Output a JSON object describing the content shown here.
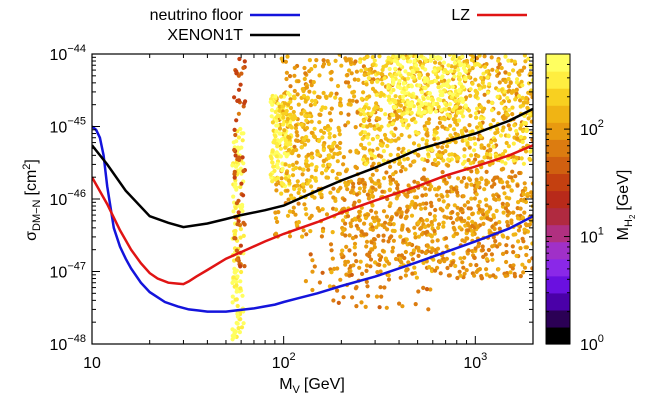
{
  "chart_data": {
    "type": "scatter",
    "title": "",
    "xlabel_main": "M",
    "xlabel_sub": "V",
    "xlabel_unit": "[GeV]",
    "ylabel_main": "σ",
    "ylabel_sub": "DM−N",
    "ylabel_unit_pre": "[cm",
    "ylabel_unit_sup": "2",
    "ylabel_unit_post": "]",
    "xscale": "log",
    "yscale": "log",
    "xlim": [
      10,
      2000
    ],
    "ylim": [
      1e-48,
      1e-44
    ],
    "grid": false,
    "legend_placement": "top (outside plot)",
    "x_ticks": [
      {
        "value": 10,
        "base": "10",
        "exp": ""
      },
      {
        "value": 100,
        "base": "10",
        "exp": "2"
      },
      {
        "value": 1000,
        "base": "10",
        "exp": "3"
      }
    ],
    "y_ticks": [
      {
        "value": 1e-48,
        "base": "10",
        "exp": "−48"
      },
      {
        "value": 1e-47,
        "base": "10",
        "exp": "−47"
      },
      {
        "value": 1e-46,
        "base": "10",
        "exp": "−46"
      },
      {
        "value": 1e-45,
        "base": "10",
        "exp": "−45"
      },
      {
        "value": 1e-44,
        "base": "10",
        "exp": "−44"
      }
    ],
    "series": [
      {
        "name": "neutrino floor",
        "color": "#1414dc",
        "x": [
          10,
          10.5,
          11,
          11.5,
          12,
          13,
          14,
          15,
          16,
          18,
          20,
          24,
          28,
          32,
          36,
          40,
          45,
          50,
          56,
          63,
          70,
          80,
          90,
          100,
          120,
          150,
          200,
          300,
          500,
          700,
          1000,
          1500,
          2000
        ],
        "y": [
          1e-45,
          9e-46,
          7e-46,
          4e-46,
          1.5e-46,
          4e-47,
          2.2e-47,
          1.5e-47,
          1.1e-47,
          7e-48,
          5.2e-48,
          3.8e-48,
          3.3e-48,
          3e-48,
          2.9e-48,
          2.8e-48,
          2.8e-48,
          2.8e-48,
          2.9e-48,
          3e-48,
          3.1e-48,
          3.3e-48,
          3.5e-48,
          3.8e-48,
          4.3e-48,
          5e-48,
          6.3e-48,
          8.5e-48,
          1.35e-47,
          1.85e-47,
          2.6e-47,
          3.9e-47,
          5.8e-47
        ]
      },
      {
        "name": "XENON1T",
        "color": "#000000",
        "x": [
          10,
          12,
          15,
          20,
          25,
          30,
          40,
          50,
          60,
          80,
          100,
          150,
          200,
          300,
          400,
          500,
          700,
          1000,
          1500,
          2000
        ],
        "y": [
          5.5e-46,
          3e-46,
          1.3e-46,
          5.8e-47,
          4.7e-47,
          4.1e-47,
          4.6e-47,
          5.3e-47,
          6e-47,
          7e-47,
          8.1e-47,
          1.3e-46,
          1.8e-46,
          2.7e-46,
          3.7e-46,
          4.8e-46,
          6.2e-46,
          8e-46,
          1.2e-45,
          1.75e-45
        ]
      },
      {
        "name": "LZ",
        "color": "#e01414",
        "x": [
          10,
          12,
          14,
          16,
          18,
          20,
          22,
          25,
          28,
          30,
          32,
          35,
          40,
          50,
          60,
          80,
          100,
          150,
          200,
          300,
          500,
          700,
          1000,
          1500,
          2000
        ],
        "y": [
          2e-46,
          8.5e-47,
          3.7e-47,
          2e-47,
          1.3e-47,
          9.5e-48,
          8e-48,
          7e-48,
          6.8e-48,
          6.7e-48,
          7.3e-48,
          8.5e-48,
          1.05e-47,
          1.5e-47,
          1.85e-47,
          2.6e-47,
          3.3e-47,
          4.8e-47,
          6.5e-47,
          9.5e-47,
          1.5e-46,
          2.1e-46,
          2.8e-46,
          4e-46,
          5.5e-46
        ]
      }
    ],
    "colorbar": {
      "label_main": "M",
      "label_sub": "H",
      "label_subsub": "2",
      "label_unit": "[GeV]",
      "scale": "log",
      "range": [
        1,
        500
      ],
      "ticks": [
        {
          "value": 1,
          "base": "10",
          "exp": "0"
        },
        {
          "value": 10,
          "base": "10",
          "exp": "1"
        },
        {
          "value": 100,
          "base": "10",
          "exp": "2"
        }
      ],
      "colors_bottom_to_top": [
        "#000000",
        "#2b0055",
        "#4a00a8",
        "#6a10e0",
        "#8a28e8",
        "#a030c8",
        "#b03080",
        "#b02a40",
        "#b82a1a",
        "#c44010",
        "#d06010",
        "#dc7c10",
        "#e89a10",
        "#f0b414",
        "#f8d020",
        "#ffee40",
        "#ffff60"
      ]
    },
    "scatter_note_points": "point cloud colored by M_H2",
    "scatter_clusters": [
      {
        "x": [
          90,
          2000
        ],
        "y": [
          3e-47,
          1e-44
        ],
        "m": 110,
        "count": 900
      },
      {
        "x": [
          200,
          2000
        ],
        "y": [
          8e-48,
          2e-46
        ],
        "m": 90,
        "count": 500
      },
      {
        "x": [
          250,
          2000
        ],
        "y": [
          3e-46,
          1e-44
        ],
        "m": 220,
        "count": 450
      },
      {
        "x": [
          350,
          900
        ],
        "y": [
          1.5e-45,
          1e-44
        ],
        "m": 400,
        "count": 220
      },
      {
        "x": [
          85,
          110
        ],
        "y": [
          1.5e-46,
          3e-45
        ],
        "m": 350,
        "count": 120
      },
      {
        "x": [
          54,
          62
        ],
        "y": [
          1e-48,
          1e-45
        ],
        "m": 400,
        "count": 130
      },
      {
        "x": [
          55,
          63
        ],
        "y": [
          1e-47,
          1e-44
        ],
        "m": 40,
        "count": 60
      },
      {
        "x": [
          95,
          200
        ],
        "y": [
          1e-46,
          3e-45
        ],
        "m": 160,
        "count": 160
      },
      {
        "x": [
          130,
          600
        ],
        "y": [
          3e-48,
          3e-47
        ],
        "m": 80,
        "count": 80
      }
    ]
  }
}
